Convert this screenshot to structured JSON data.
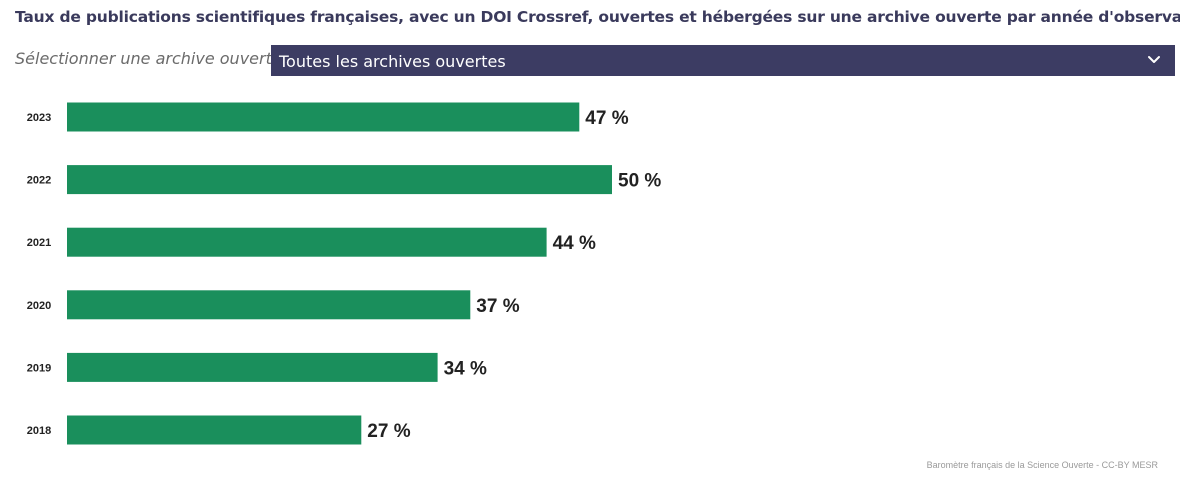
{
  "title": "Taux de publications scientifiques françaises, avec un DOI Crossref, ouvertes et hébergées sur une archive ouverte par année d'observation",
  "selector": {
    "label": "Sélectionner une archive ouverte",
    "value": "Toutes les archives ouvertes",
    "icon": "chevron-down-icon"
  },
  "source": "Baromètre français de la Science Ouverte - CC-BY MESR",
  "colors": {
    "bar": "#1a8f5c",
    "select_bg": "#3c3c63",
    "title": "#3a3a5c"
  },
  "chart_data": {
    "type": "bar",
    "orientation": "horizontal",
    "categories": [
      "2023",
      "2022",
      "2021",
      "2020",
      "2019",
      "2018"
    ],
    "values": [
      47,
      50,
      44,
      37,
      34,
      27
    ],
    "value_labels": [
      "47 %",
      "50 %",
      "44 %",
      "37 %",
      "34 %",
      "27 %"
    ],
    "xlim": [
      0,
      100
    ],
    "grid": false,
    "legend": "none"
  }
}
